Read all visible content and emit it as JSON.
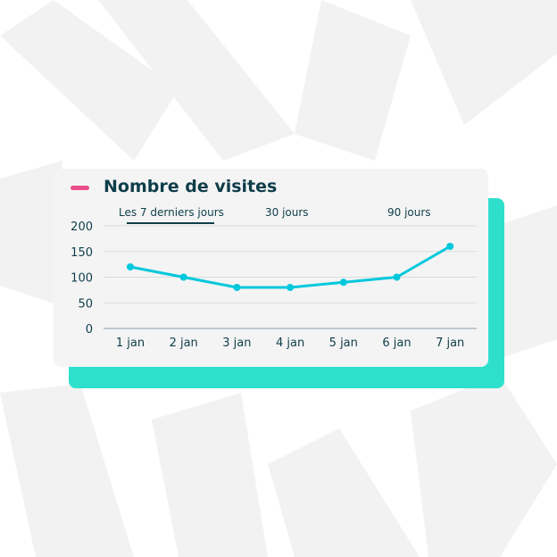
{
  "card": {
    "title": "Nombre de visites",
    "legend_color": "#e94f8a",
    "tabs": [
      {
        "label": "Les 7 derniers jours",
        "active": true
      },
      {
        "label": "30 jours",
        "active": false
      },
      {
        "label": "90 jours",
        "active": false
      }
    ]
  },
  "chart_data": {
    "type": "line",
    "categories": [
      "1 jan",
      "2 jan",
      "3 jan",
      "4 jan",
      "5 jan",
      "6 jan",
      "7 jan"
    ],
    "series": [
      {
        "name": "Nombre de visites",
        "values": [
          120,
          100,
          80,
          80,
          90,
          100,
          160
        ],
        "color": "#00c8dc"
      }
    ],
    "yticks": [
      "0",
      "50",
      "100",
      "150",
      "200"
    ],
    "ylim": [
      0,
      200
    ],
    "grid": true,
    "xlabel": "",
    "ylabel": ""
  },
  "colors": {
    "accent_panel": "#2ee0cc",
    "text": "#0f3d4a"
  }
}
